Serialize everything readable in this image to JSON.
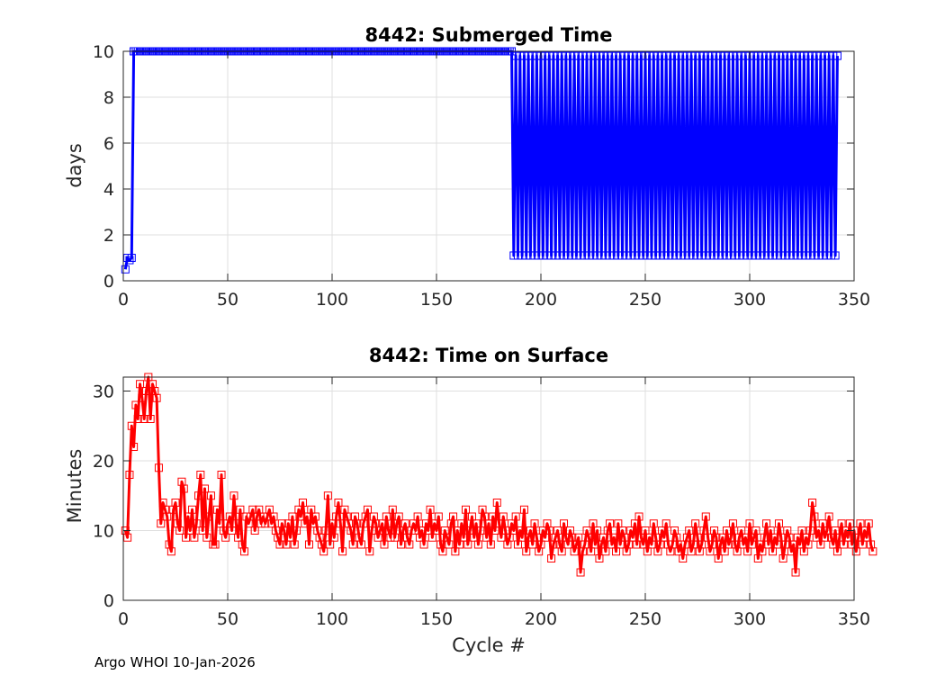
{
  "footer": "Argo WHOI 10-Jan-2026",
  "colors": {
    "series1": "#0000ff",
    "series2": "#ff0000",
    "axes": "#262626",
    "grid": "#dfdfdf"
  },
  "chart_data": [
    {
      "type": "line",
      "title": "8442: Submerged Time",
      "xlabel": "",
      "ylabel": "days",
      "xlim": [
        0,
        350
      ],
      "ylim": [
        0,
        10
      ],
      "xticks": [
        0,
        50,
        100,
        150,
        200,
        250,
        300,
        350
      ],
      "yticks": [
        0,
        2,
        4,
        6,
        8,
        10
      ],
      "grid": true,
      "marker": "square",
      "color": "#0000ff",
      "segments": [
        {
          "x": [
            1,
            2,
            3,
            4,
            5
          ],
          "y": [
            0.5,
            1.0,
            0.9,
            1.0,
            10.0
          ]
        },
        {
          "x_start": 5,
          "x_end": 186,
          "value": 10.0
        },
        {
          "x_start": 187,
          "x_end": 341,
          "alternating": [
            1.1,
            9.8
          ]
        }
      ],
      "last_point": {
        "x": 342,
        "y": 9.8
      }
    },
    {
      "type": "line",
      "title": "8442: Time on Surface",
      "xlabel": "Cycle #",
      "ylabel": "Minutes",
      "xlim": [
        0,
        350
      ],
      "ylim": [
        0,
        32
      ],
      "xticks": [
        0,
        50,
        100,
        150,
        200,
        250,
        300,
        350
      ],
      "yticks": [
        0,
        10,
        20,
        30
      ],
      "grid": true,
      "marker": "square",
      "color": "#ff0000",
      "x_start": 1,
      "values": [
        10,
        9,
        18,
        25,
        22,
        28,
        26,
        31,
        29,
        26,
        30,
        32,
        26,
        31,
        30,
        29,
        19,
        11,
        14,
        13,
        12,
        8,
        7,
        13,
        14,
        11,
        10,
        17,
        16,
        9,
        12,
        10,
        13,
        9,
        11,
        15,
        18,
        10,
        16,
        9,
        12,
        15,
        8,
        8,
        13,
        11,
        18,
        10,
        9,
        11,
        12,
        10,
        15,
        11,
        9,
        13,
        8,
        7,
        12,
        11,
        12,
        13,
        10,
        12,
        13,
        11,
        12,
        11,
        12,
        13,
        11,
        12,
        10,
        9,
        8,
        11,
        10,
        8,
        11,
        9,
        12,
        8,
        10,
        13,
        12,
        14,
        11,
        12,
        8,
        13,
        11,
        12,
        10,
        9,
        8,
        7,
        10,
        15,
        8,
        11,
        9,
        12,
        14,
        11,
        7,
        13,
        12,
        11,
        10,
        8,
        12,
        11,
        9,
        8,
        11,
        12,
        13,
        7,
        10,
        12,
        11,
        9,
        10,
        11,
        8,
        12,
        10,
        9,
        13,
        9,
        11,
        12,
        8,
        10,
        11,
        9,
        8,
        10,
        11,
        10,
        12,
        9,
        10,
        8,
        11,
        10,
        13,
        9,
        11,
        10,
        12,
        8,
        7,
        10,
        9,
        8,
        11,
        12,
        7,
        10,
        8,
        11,
        9,
        13,
        8,
        10,
        12,
        9,
        11,
        8,
        10,
        13,
        12,
        9,
        11,
        8,
        12,
        10,
        14,
        11,
        9,
        12,
        10,
        8,
        9,
        11,
        10,
        12,
        8,
        10,
        9,
        13,
        7,
        9,
        10,
        8,
        11,
        9,
        7,
        8,
        10,
        9,
        11,
        10,
        6,
        8,
        9,
        10,
        8,
        7,
        11,
        9,
        8,
        10,
        9,
        7,
        8,
        9,
        4,
        7,
        8,
        10,
        9,
        7,
        11,
        8,
        10,
        6,
        8,
        9,
        7,
        10,
        11,
        8,
        9,
        7,
        11,
        8,
        10,
        9,
        7,
        8,
        10,
        9,
        11,
        8,
        12,
        9,
        8,
        10,
        7,
        9,
        8,
        11,
        9,
        7,
        8,
        10,
        9,
        11,
        8,
        7,
        8,
        10,
        9,
        7,
        8,
        6,
        8,
        9,
        10,
        7,
        8,
        11,
        9,
        7,
        8,
        10,
        12,
        9,
        7,
        8,
        10,
        9,
        6,
        8,
        9,
        7,
        10,
        8,
        9,
        11,
        8,
        7,
        9,
        10,
        8,
        9,
        7,
        11,
        8,
        9,
        10,
        6,
        8,
        7,
        9,
        11,
        8,
        10,
        7,
        9,
        8,
        11,
        9,
        6,
        8,
        10,
        9,
        7,
        8,
        4,
        9,
        8,
        10,
        7,
        9,
        8,
        10,
        14,
        12,
        9,
        10,
        8,
        11,
        9,
        10,
        12,
        9,
        8,
        10,
        7,
        9,
        11,
        8,
        10,
        9,
        11,
        8,
        10,
        7,
        9,
        11,
        8,
        10,
        9,
        11,
        8,
        7
      ]
    }
  ]
}
